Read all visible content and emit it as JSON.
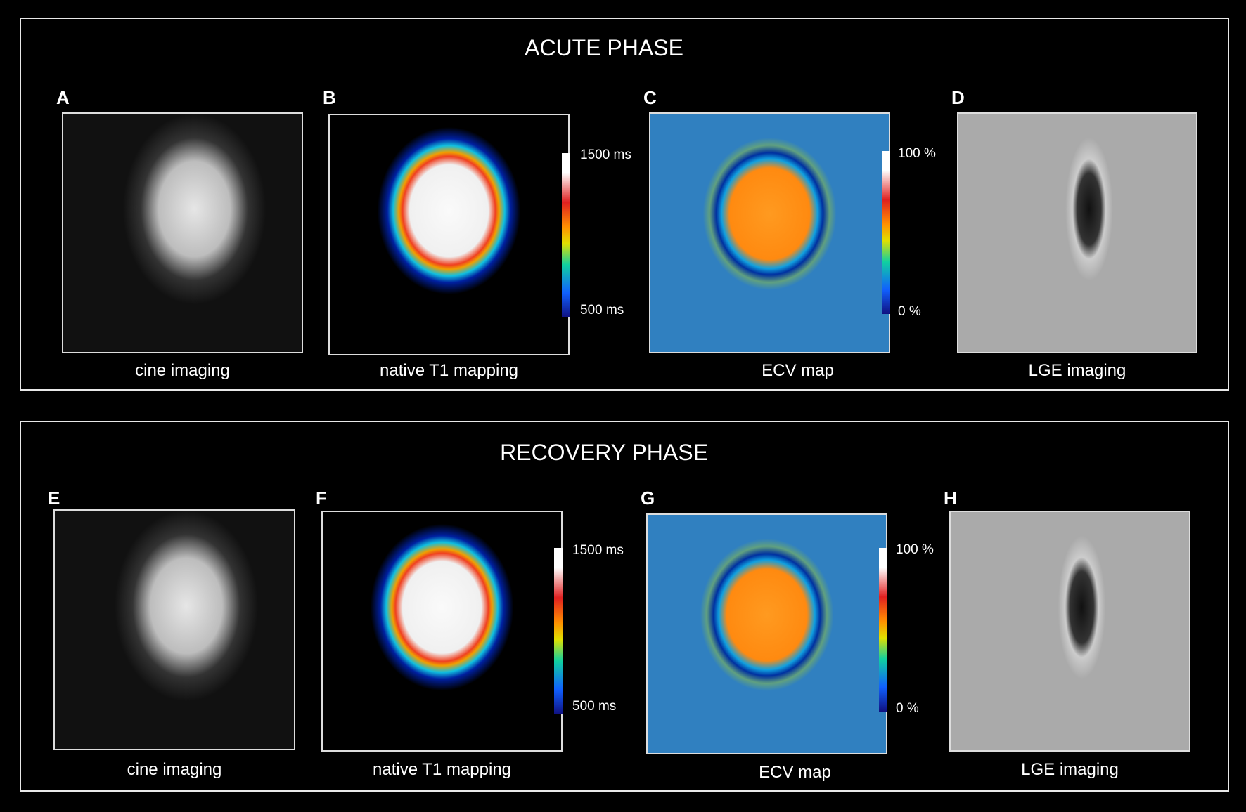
{
  "panels": [
    {
      "title": "ACUTE PHASE",
      "items": [
        {
          "letter": "A",
          "caption": "cine imaging"
        },
        {
          "letter": "B",
          "caption": "native T1 mapping",
          "scale_top": "1500 ms",
          "scale_bottom": "500 ms"
        },
        {
          "letter": "C",
          "caption": "ECV map",
          "scale_top": "100 %",
          "scale_bottom": "0 %"
        },
        {
          "letter": "D",
          "caption": "LGE imaging"
        }
      ]
    },
    {
      "title": "RECOVERY PHASE",
      "items": [
        {
          "letter": "E",
          "caption": "cine imaging"
        },
        {
          "letter": "F",
          "caption": "native T1 mapping",
          "scale_top": "1500 ms",
          "scale_bottom": "500 ms"
        },
        {
          "letter": "G",
          "caption": "ECV map",
          "scale_top": "100 %",
          "scale_bottom": "0 %"
        },
        {
          "letter": "H",
          "caption": "LGE imaging"
        }
      ]
    }
  ]
}
